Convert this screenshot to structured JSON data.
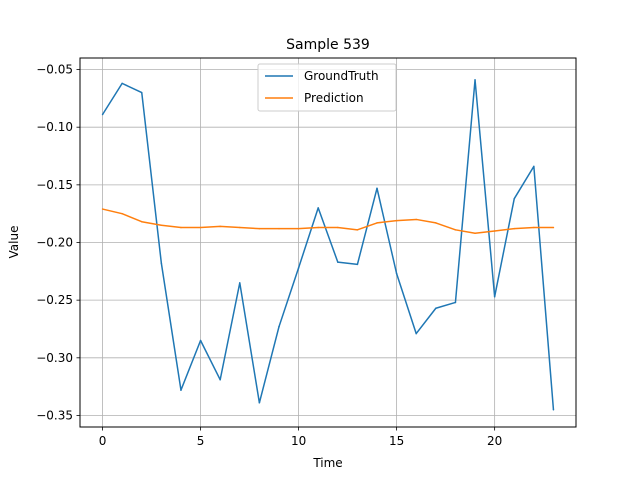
{
  "chart_data": {
    "type": "line",
    "title": "Sample 539",
    "xlabel": "Time",
    "ylabel": "Value",
    "xlim": [
      -1.15,
      24.15
    ],
    "ylim": [
      -0.36,
      -0.04
    ],
    "xticks": [
      0,
      5,
      10,
      15,
      20
    ],
    "xtick_labels": [
      "0",
      "5",
      "10",
      "15",
      "20"
    ],
    "yticks": [
      -0.35,
      -0.3,
      -0.25,
      -0.2,
      -0.15,
      -0.1,
      -0.05
    ],
    "ytick_labels": [
      "−0.35",
      "−0.30",
      "−0.25",
      "−0.20",
      "−0.15",
      "−0.10",
      "−0.05"
    ],
    "grid": true,
    "legend_position": "upper-center",
    "x": [
      0,
      1,
      2,
      3,
      4,
      5,
      6,
      7,
      8,
      9,
      10,
      11,
      12,
      13,
      14,
      15,
      16,
      17,
      18,
      19,
      20,
      21,
      22,
      23
    ],
    "series": [
      {
        "name": "GroundTruth",
        "color": "#1f77b4",
        "values": [
          -0.089,
          -0.062,
          -0.07,
          -0.218,
          -0.328,
          -0.285,
          -0.319,
          -0.235,
          -0.339,
          -0.273,
          -0.222,
          -0.17,
          -0.217,
          -0.219,
          -0.153,
          -0.227,
          -0.279,
          -0.257,
          -0.252,
          -0.059,
          -0.247,
          -0.162,
          -0.134,
          -0.345
        ]
      },
      {
        "name": "Prediction",
        "color": "#ff7f0e",
        "values": [
          -0.171,
          -0.175,
          -0.182,
          -0.185,
          -0.187,
          -0.187,
          -0.186,
          -0.187,
          -0.188,
          -0.188,
          -0.188,
          -0.187,
          -0.187,
          -0.189,
          -0.183,
          -0.181,
          -0.18,
          -0.183,
          -0.189,
          -0.192,
          -0.19,
          -0.188,
          -0.187,
          -0.187
        ]
      }
    ]
  }
}
